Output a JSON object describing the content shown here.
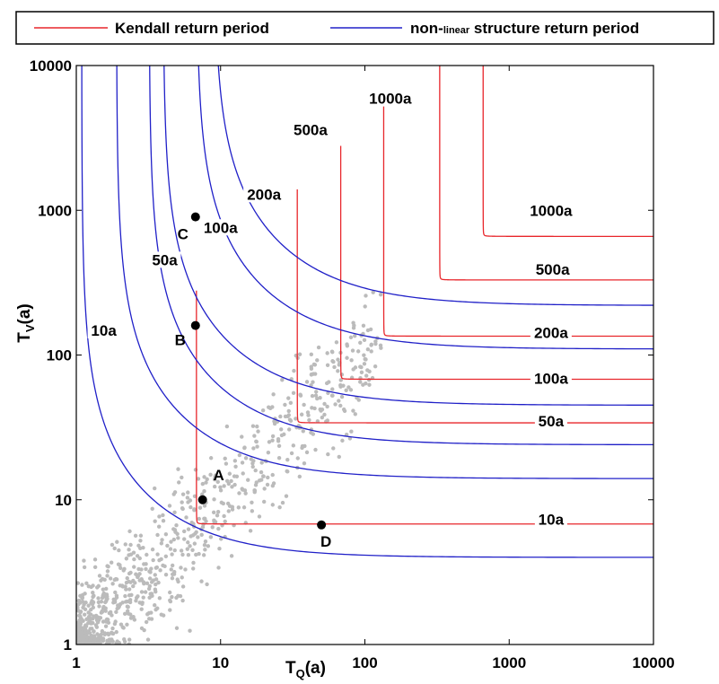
{
  "chart_data": {
    "type": "line",
    "xlabel": "T",
    "xlabel_sub": "Q",
    "xlabel_unit": "(a)",
    "ylabel": "T",
    "ylabel_sub": "V",
    "ylabel_unit": "(a)",
    "xscale": "log",
    "yscale": "log",
    "xlim": [
      1,
      10000
    ],
    "ylim": [
      1,
      10000
    ],
    "x_ticks": [
      1,
      10,
      100,
      1000,
      10000
    ],
    "x_tick_labels": [
      "1",
      "10",
      "100",
      "1000",
      "10000"
    ],
    "y_ticks": [
      1,
      10,
      100,
      1000,
      10000
    ],
    "y_tick_labels": [
      "1",
      "10",
      "100",
      "1000",
      "10000"
    ],
    "grid": false,
    "legend": {
      "placement": "top",
      "entries": [
        {
          "label": "Kendall return period",
          "color": "#e8262b"
        },
        {
          "label_prefix": "non-",
          "label_small": "linear",
          "label_suffix": " structure return period",
          "color": "#2020c8"
        }
      ]
    },
    "series": [
      {
        "name": "Kendall return period",
        "kind": "kendall",
        "color": "#e8262b",
        "curves": [
          {
            "label": "10a",
            "x_asymptote": 6.8,
            "y_asymptote": 6.8
          },
          {
            "label": "50a",
            "x_asymptote": 34,
            "y_asymptote": 34
          },
          {
            "label": "100a",
            "x_asymptote": 68,
            "y_asymptote": 68
          },
          {
            "label": "200a",
            "x_asymptote": 135,
            "y_asymptote": 135
          },
          {
            "label": "500a",
            "x_asymptote": 330,
            "y_asymptote": 330
          },
          {
            "label": "1000a",
            "x_asymptote": 660,
            "y_asymptote": 660
          }
        ]
      },
      {
        "name": "non-linear structure return period",
        "kind": "structure",
        "color": "#2020c8",
        "curves": [
          {
            "label": "10a",
            "x_asymptote": 1.09,
            "y_asymptote": 4.0
          },
          {
            "label": "50a",
            "x_asymptote": 1.9,
            "y_asymptote": 14
          },
          {
            "label": "100a",
            "x_asymptote": 3.2,
            "y_asymptote": 24
          },
          {
            "label": "200a",
            "x_asymptote": 4.0,
            "y_asymptote": 45
          },
          {
            "label": "500a",
            "x_asymptote": 6.8,
            "y_asymptote": 110
          },
          {
            "label": "1000a",
            "x_asymptote": 9.0,
            "y_asymptote": 220
          }
        ]
      }
    ],
    "curve_labels": [
      {
        "text": "10a",
        "x": 1.55,
        "y": 140
      },
      {
        "text": "50a",
        "x": 4.1,
        "y": 430
      },
      {
        "text": "100a",
        "x": 10,
        "y": 720
      },
      {
        "text": "200a",
        "x": 20,
        "y": 1220
      },
      {
        "text": "500a",
        "x": 42,
        "y": 3400
      },
      {
        "text": "1000a",
        "x": 150,
        "y": 5600
      },
      {
        "text": "1000a",
        "x": 1950,
        "y": 940
      },
      {
        "text": "500a",
        "x": 2000,
        "y": 370
      },
      {
        "text": "200a",
        "x": 1950,
        "y": 135
      },
      {
        "text": "100a",
        "x": 1950,
        "y": 65
      },
      {
        "text": "50a",
        "x": 1950,
        "y": 33
      },
      {
        "text": "10a",
        "x": 1950,
        "y": 6.9
      }
    ],
    "marked_points": [
      {
        "label": "A",
        "x": 7.5,
        "y": 10
      },
      {
        "label": "B",
        "x": 6.7,
        "y": 160
      },
      {
        "label": "C",
        "x": 6.7,
        "y": 900
      },
      {
        "label": "D",
        "x": 50,
        "y": 6.7
      }
    ],
    "scatter": {
      "name": "observations",
      "color": "#bbbbbb",
      "count": 900
    }
  }
}
